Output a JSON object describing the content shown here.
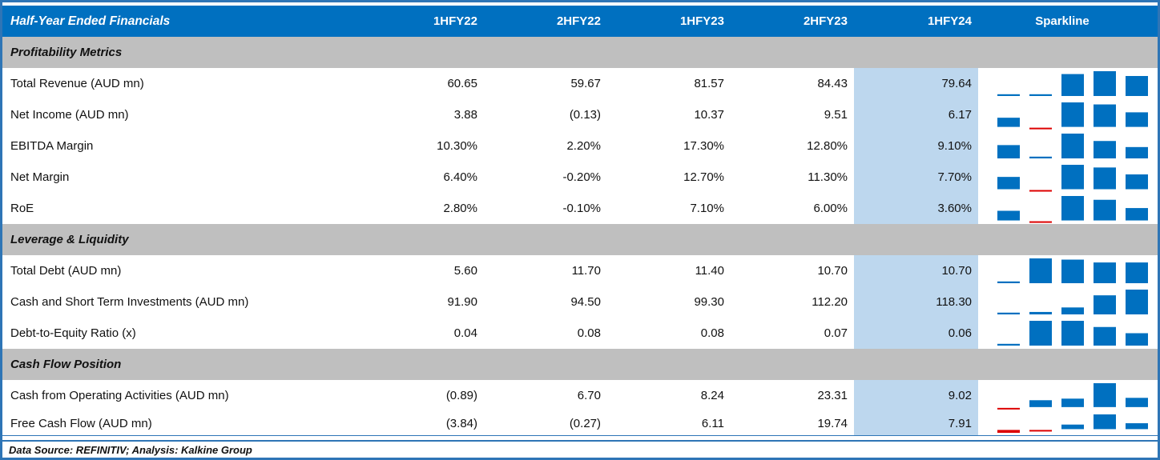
{
  "chart_data": {
    "type": "table",
    "title": "Half-Year Ended Financials",
    "columns": [
      "1HFY22",
      "2HFY22",
      "1HFY23",
      "2HFY23",
      "1HFY24"
    ],
    "sparkline_label": "Sparkline",
    "highlight_column": "1HFY24",
    "sparkline_type": "column (bar) sparkline per row; positive bars blue, negative bars red; bars scaled min-to-max per row, axis at zero when negatives present",
    "sections": [
      {
        "title": "Profitability Metrics",
        "rows": [
          {
            "label": "Total Revenue (AUD mn)",
            "display": [
              "60.65",
              "59.67",
              "81.57",
              "84.43",
              "79.64"
            ],
            "values": [
              60.65,
              59.67,
              81.57,
              84.43,
              79.64
            ]
          },
          {
            "label": "Net Income (AUD mn)",
            "display": [
              "3.88",
              "(0.13)",
              "10.37",
              "9.51",
              "6.17"
            ],
            "values": [
              3.88,
              -0.13,
              10.37,
              9.51,
              6.17
            ]
          },
          {
            "label": "EBITDA Margin",
            "display": [
              "10.30%",
              "2.20%",
              "17.30%",
              "12.80%",
              "9.10%"
            ],
            "values": [
              10.3,
              2.2,
              17.3,
              12.8,
              9.1
            ]
          },
          {
            "label": "Net Margin",
            "display": [
              "6.40%",
              "-0.20%",
              "12.70%",
              "11.30%",
              "7.70%"
            ],
            "values": [
              6.4,
              -0.2,
              12.7,
              11.3,
              7.7
            ]
          },
          {
            "label": "RoE",
            "display": [
              "2.80%",
              "-0.10%",
              "7.10%",
              "6.00%",
              "3.60%"
            ],
            "values": [
              2.8,
              -0.1,
              7.1,
              6.0,
              3.6
            ]
          }
        ]
      },
      {
        "title": "Leverage & Liquidity",
        "rows": [
          {
            "label": "Total Debt (AUD mn)",
            "display": [
              "5.60",
              "11.70",
              "11.40",
              "10.70",
              "10.70"
            ],
            "values": [
              5.6,
              11.7,
              11.4,
              10.7,
              10.7
            ]
          },
          {
            "label": "Cash and Short Term Investments (AUD mn)",
            "display": [
              "91.90",
              "94.50",
              "99.30",
              "112.20",
              "118.30"
            ],
            "values": [
              91.9,
              94.5,
              99.3,
              112.2,
              118.3
            ]
          },
          {
            "label": "Debt-to-Equity Ratio (x)",
            "display": [
              "0.04",
              "0.08",
              "0.08",
              "0.07",
              "0.06"
            ],
            "values": [
              0.04,
              0.08,
              0.08,
              0.07,
              0.06
            ]
          }
        ]
      },
      {
        "title": "Cash Flow Position",
        "rows": [
          {
            "label": "Cash from Operating Activities (AUD mn)",
            "display": [
              "(0.89)",
              "6.70",
              "8.24",
              "23.31",
              "9.02"
            ],
            "values": [
              -0.89,
              6.7,
              8.24,
              23.31,
              9.02
            ]
          },
          {
            "label": "Free Cash Flow (AUD mn)",
            "display": [
              "(3.84)",
              "(0.27)",
              "6.11",
              "19.74",
              "7.91"
            ],
            "values": [
              -3.84,
              -0.27,
              6.11,
              19.74,
              7.91
            ]
          }
        ]
      }
    ],
    "source_note": "Data Source: REFINITIV; Analysis: Kalkine Group",
    "colors": {
      "header_bg": "#0070C0",
      "header_text": "#FFFFFF",
      "section_bg": "#BFBFBF",
      "highlight_bg": "#BDD7EE",
      "spark_positive": "#0070C0",
      "spark_negative": "#DD0000",
      "border": "#2E75B6"
    }
  }
}
